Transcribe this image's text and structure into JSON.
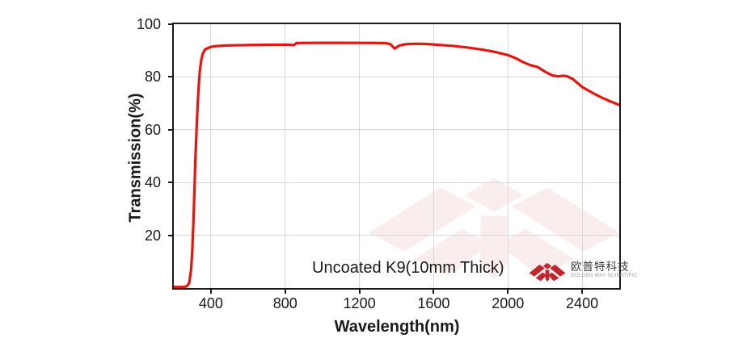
{
  "figure": {
    "annotation": "Uncoated K9(10mm Thick)",
    "brand": {
      "name_cn": "欧普特科技",
      "tagline_en": "GOLDEN WAY SCIENTIFIC"
    }
  },
  "colors": {
    "curve": "#e8140e",
    "grid": "#d8d8d8",
    "axis": "#1a1a1a",
    "logo_red": "#c4242b",
    "background": "#ffffff"
  },
  "chart_data": {
    "type": "line",
    "title": "",
    "xlabel": "Wavelength(nm)",
    "ylabel": "Transmission(%)",
    "xlim": [
      200,
      2600
    ],
    "ylim": [
      0,
      100
    ],
    "x_ticks": [
      400,
      800,
      1200,
      1600,
      2000,
      2400
    ],
    "y_ticks": [
      20,
      40,
      60,
      80,
      100
    ],
    "grid": true,
    "legend_position": "none",
    "annotation": "Uncoated K9(10mm Thick)",
    "series": [
      {
        "name": "Uncoated K9 (10mm Thick)",
        "color": "#e8140e",
        "points": [
          [
            200,
            0.4
          ],
          [
            258,
            0.4
          ],
          [
            272,
            0.8
          ],
          [
            283,
            2
          ],
          [
            293,
            7
          ],
          [
            300,
            15
          ],
          [
            308,
            30
          ],
          [
            316,
            48
          ],
          [
            324,
            63
          ],
          [
            332,
            74
          ],
          [
            340,
            82
          ],
          [
            348,
            86.5
          ],
          [
            356,
            88.8
          ],
          [
            368,
            90.4
          ],
          [
            385,
            91.0
          ],
          [
            400,
            91.4
          ],
          [
            430,
            91.7
          ],
          [
            470,
            91.9
          ],
          [
            520,
            92.0
          ],
          [
            600,
            92.1
          ],
          [
            700,
            92.2
          ],
          [
            800,
            92.25
          ],
          [
            848,
            92.1
          ],
          [
            860,
            92.8
          ],
          [
            900,
            92.9
          ],
          [
            1000,
            92.95
          ],
          [
            1100,
            92.95
          ],
          [
            1250,
            92.9
          ],
          [
            1340,
            92.85
          ],
          [
            1365,
            92.5
          ],
          [
            1390,
            90.8
          ],
          [
            1415,
            91.9
          ],
          [
            1445,
            92.4
          ],
          [
            1500,
            92.6
          ],
          [
            1560,
            92.5
          ],
          [
            1620,
            92.2
          ],
          [
            1700,
            91.8
          ],
          [
            1780,
            91.2
          ],
          [
            1860,
            90.4
          ],
          [
            1930,
            89.5
          ],
          [
            2000,
            88.3
          ],
          [
            2040,
            87.2
          ],
          [
            2080,
            85.7
          ],
          [
            2120,
            84.5
          ],
          [
            2160,
            83.8
          ],
          [
            2200,
            82.0
          ],
          [
            2240,
            80.6
          ],
          [
            2270,
            80.2
          ],
          [
            2300,
            80.5
          ],
          [
            2320,
            80.2
          ],
          [
            2350,
            79.2
          ],
          [
            2400,
            76.2
          ],
          [
            2450,
            74.2
          ],
          [
            2500,
            72.4
          ],
          [
            2550,
            70.8
          ],
          [
            2600,
            69.4
          ]
        ]
      }
    ]
  }
}
